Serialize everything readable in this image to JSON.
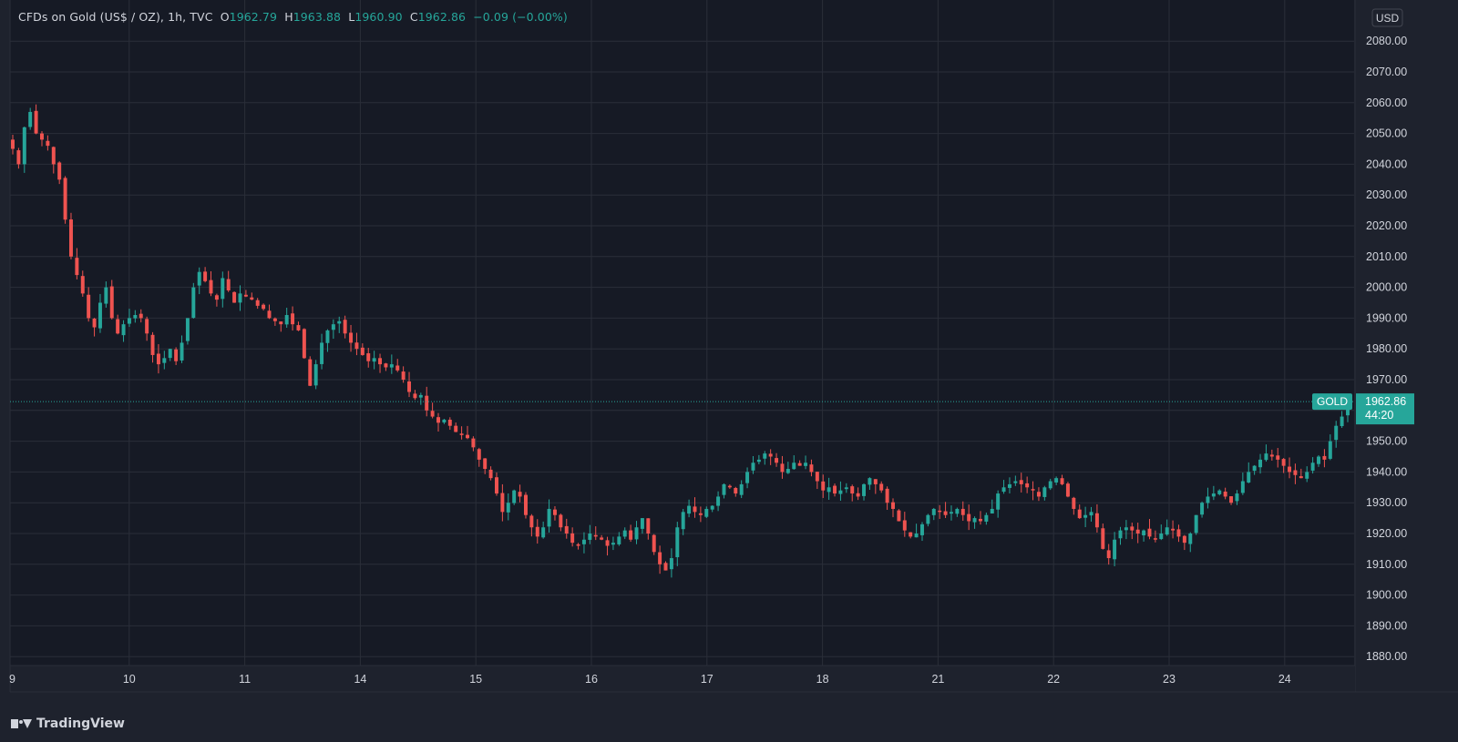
{
  "legend": {
    "symbol": "CFDs on Gold (US$ / OZ), 1h, TVC",
    "open_label": "O",
    "open": "1962.79",
    "high_label": "H",
    "high": "1963.88",
    "low_label": "L",
    "low": "1960.90",
    "close_label": "C",
    "close": "1962.86",
    "change": "−0.09 (−0.00%)"
  },
  "currency": "USD",
  "price_tag": {
    "name": "GOLD",
    "price": "1962.86",
    "countdown": "44:20"
  },
  "brand": "TradingView",
  "colors": {
    "background": "#1e222d",
    "plot_background": "#161a25",
    "grid": "#2a2e39",
    "up": "#26a69a",
    "down": "#ef5350",
    "text": "#d1d4dc"
  },
  "chart_data": {
    "type": "candlestick",
    "title": "CFDs on Gold (US$ / OZ), 1h, TVC",
    "ylim": [
      1873,
      2087
    ],
    "yticks": [
      2080,
      2070,
      2060,
      2050,
      2040,
      2030,
      2020,
      2010,
      2000,
      1990,
      1980,
      1970,
      1950,
      1940,
      1930,
      1920,
      1910,
      1900,
      1890,
      1880
    ],
    "ytick_labels": [
      "2080.00",
      "2070.00",
      "2060.00",
      "2050.00",
      "2040.00",
      "2030.00",
      "2020.00",
      "2010.00",
      "2000.00",
      "1990.00",
      "1980.00",
      "1970.00",
      "1950.00",
      "1940.00",
      "1930.00",
      "1920.00",
      "1910.00",
      "1900.00",
      "1890.00",
      "1880.00"
    ],
    "x_tick_labels": [
      "9",
      "10",
      "11",
      "14",
      "15",
      "16",
      "17",
      "18",
      "21",
      "22",
      "23",
      "24"
    ],
    "grid": true,
    "last_price": 1962.86,
    "close_path": [
      2045,
      2040,
      2052,
      2057,
      2050,
      2048,
      2046,
      2040,
      2035,
      2022,
      2010,
      2004,
      1998,
      1990,
      1987,
      1995,
      2000,
      1990,
      1985,
      1988,
      1990,
      1991,
      1990,
      1985,
      1978,
      1975,
      1977,
      1980,
      1976,
      1982,
      1990,
      2000,
      2005,
      2002,
      1998,
      1996,
      2003,
      1999,
      1995,
      1998,
      1997,
      1996,
      1994,
      1993,
      1990,
      1989,
      1988,
      1991,
      1988,
      1986,
      1977,
      1968,
      1975,
      1982,
      1986,
      1988,
      1989,
      1985,
      1982,
      1980,
      1978,
      1976,
      1977,
      1975,
      1974,
      1975,
      1973,
      1970,
      1966,
      1964,
      1965,
      1960,
      1958,
      1956,
      1957,
      1955,
      1953,
      1952,
      1951,
      1948,
      1944,
      1941,
      1938,
      1933,
      1927,
      1930,
      1934,
      1932,
      1926,
      1922,
      1919,
      1922,
      1928,
      1926,
      1922,
      1920,
      1917,
      1916,
      1918,
      1920,
      1919,
      1918,
      1916,
      1917,
      1919,
      1921,
      1918,
      1922,
      1925,
      1920,
      1914,
      1910,
      1908,
      1912,
      1922,
      1927,
      1929,
      1927,
      1926,
      1928,
      1929,
      1932,
      1936,
      1935,
      1933,
      1936,
      1940,
      1943,
      1944,
      1946,
      1945,
      1943,
      1940,
      1941,
      1943,
      1942,
      1943,
      1940,
      1937,
      1934,
      1935,
      1933,
      1934,
      1935,
      1933,
      1932,
      1936,
      1938,
      1936,
      1934,
      1930,
      1928,
      1924,
      1921,
      1919,
      1920,
      1923,
      1926,
      1928,
      1927,
      1926,
      1927,
      1928,
      1926,
      1924,
      1925,
      1924,
      1926,
      1928,
      1933,
      1935,
      1936,
      1937,
      1936,
      1935,
      1934,
      1932,
      1935,
      1937,
      1938,
      1936,
      1932,
      1928,
      1925,
      1926,
      1927,
      1922,
      1915,
      1912,
      1918,
      1921,
      1922,
      1921,
      1920,
      1921,
      1919,
      1918,
      1920,
      1922,
      1921,
      1919,
      1917,
      1920,
      1926,
      1930,
      1932,
      1933,
      1934,
      1932,
      1930,
      1933,
      1937,
      1940,
      1942,
      1944,
      1946,
      1945,
      1944,
      1942,
      1940,
      1939,
      1938,
      1940,
      1943,
      1945,
      1944,
      1950,
      1955,
      1958,
      1962.86
    ]
  }
}
